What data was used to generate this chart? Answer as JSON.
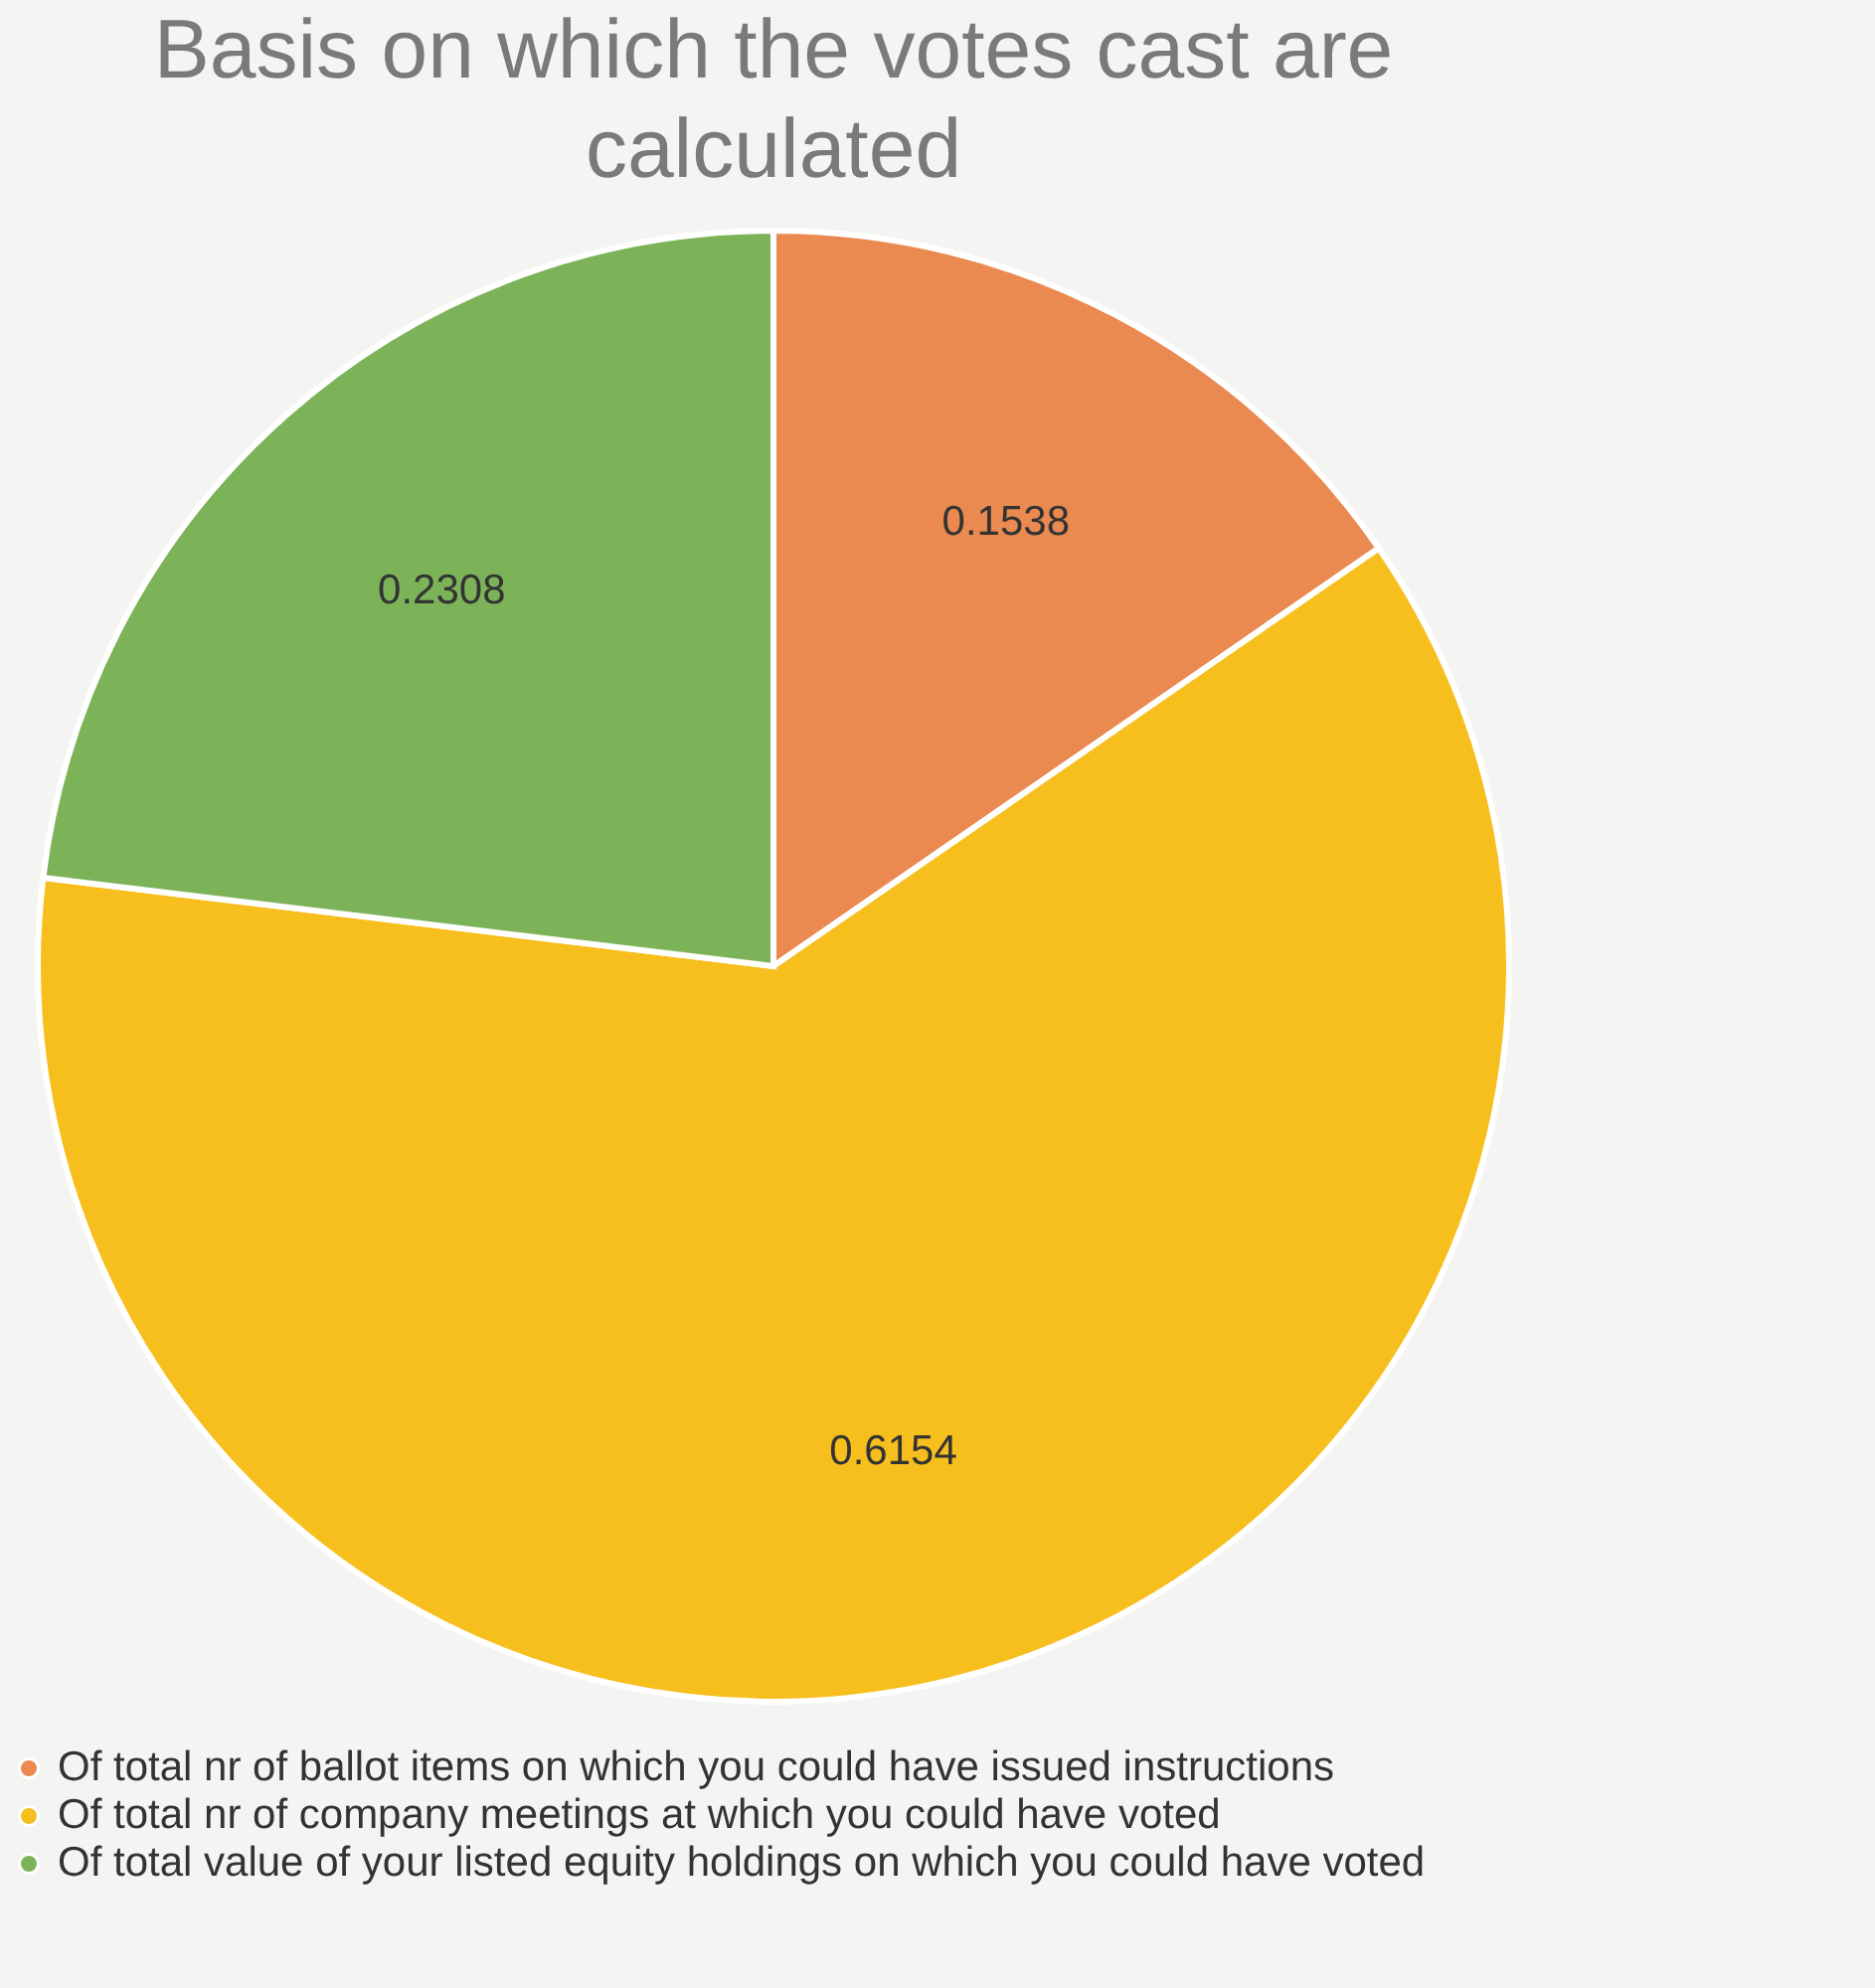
{
  "chart_data": {
    "type": "pie",
    "title": "Basis on which the votes cast are calculated",
    "categories": [
      "Of total nr of ballot items on which you could have issued instructions",
      "Of total nr of company meetings at which you could have voted",
      "Of total value of your listed equity holdings on which you could have voted"
    ],
    "values": [
      0.1538,
      0.6154,
      0.2308
    ],
    "colors": [
      "#ea8a50",
      "#f7bf1e",
      "#7cb358"
    ],
    "data_labels": true,
    "legend": "bottom"
  }
}
